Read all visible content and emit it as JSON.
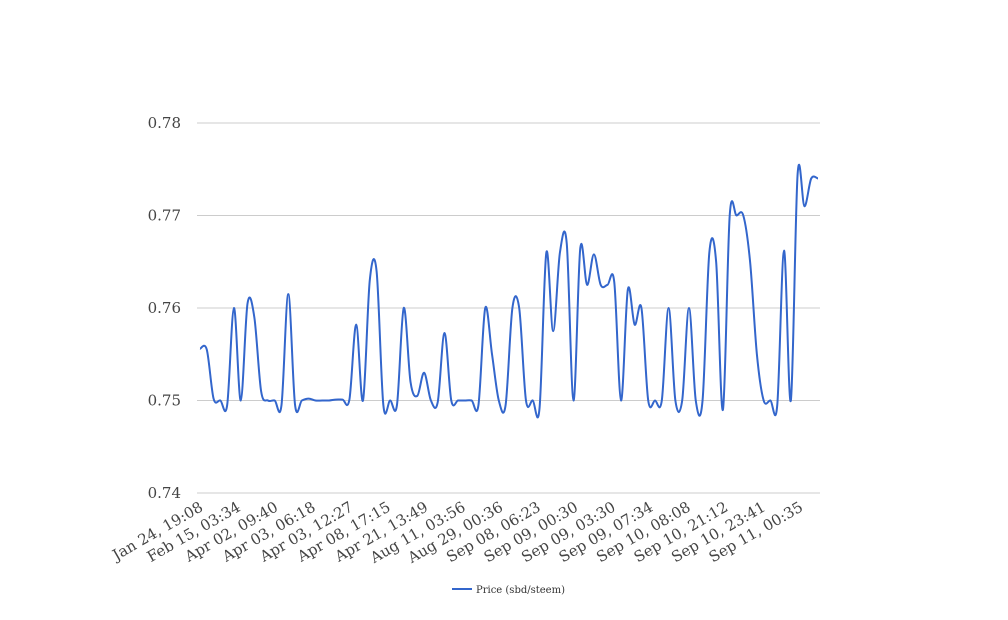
{
  "chart_data": {
    "type": "line",
    "title": "",
    "xlabel": "",
    "ylabel": "",
    "ylim": [
      0.74,
      0.78
    ],
    "y_ticks": [
      "0.74",
      "0.75",
      "0.76",
      "0.77",
      "0.78"
    ],
    "grid": true,
    "legend_position": "bottom",
    "x_tick_labels": [
      "Jan 24, 19:08",
      "Feb 15, 03:34",
      "Apr 02, 09:40",
      "Apr 03, 06:18",
      "Apr 03, 12:27",
      "Apr 08, 17:15",
      "Apr 21, 13:49",
      "Aug 11, 03:56",
      "Aug 29, 00:36",
      "Sep 08, 06:23",
      "Sep 09, 00:30",
      "Sep 09, 03:30",
      "Sep 09, 07:34",
      "Sep 10, 08:08",
      "Sep 10, 21:12",
      "Sep 10, 23:41",
      "Sep 11, 00:35"
    ],
    "series": [
      {
        "name": "Price (sbd/steem)",
        "color": "#3366cc",
        "values": [
          0.7556,
          0.7555,
          0.7502,
          0.75,
          0.7495,
          0.76,
          0.75,
          0.7605,
          0.759,
          0.751,
          0.75,
          0.75,
          0.7495,
          0.7615,
          0.7495,
          0.75,
          0.7502,
          0.75,
          0.75,
          0.75,
          0.7501,
          0.7501,
          0.7501,
          0.7582,
          0.75,
          0.763,
          0.764,
          0.7495,
          0.75,
          0.7495,
          0.76,
          0.752,
          0.7505,
          0.753,
          0.75,
          0.7498,
          0.7573,
          0.75,
          0.75,
          0.75,
          0.75,
          0.7495,
          0.76,
          0.755,
          0.75,
          0.7495,
          0.76,
          0.76,
          0.75,
          0.75,
          0.7492,
          0.766,
          0.7575,
          0.766,
          0.767,
          0.75,
          0.7665,
          0.7625,
          0.7658,
          0.7625,
          0.7625,
          0.7628,
          0.75,
          0.762,
          0.7582,
          0.76,
          0.75,
          0.75,
          0.75,
          0.76,
          0.75,
          0.75,
          0.76,
          0.75,
          0.75,
          0.766,
          0.765,
          0.749,
          0.77,
          0.77,
          0.77,
          0.765,
          0.755,
          0.75,
          0.75,
          0.7495,
          0.7662,
          0.75,
          0.7745,
          0.771,
          0.774,
          0.774
        ]
      }
    ]
  }
}
